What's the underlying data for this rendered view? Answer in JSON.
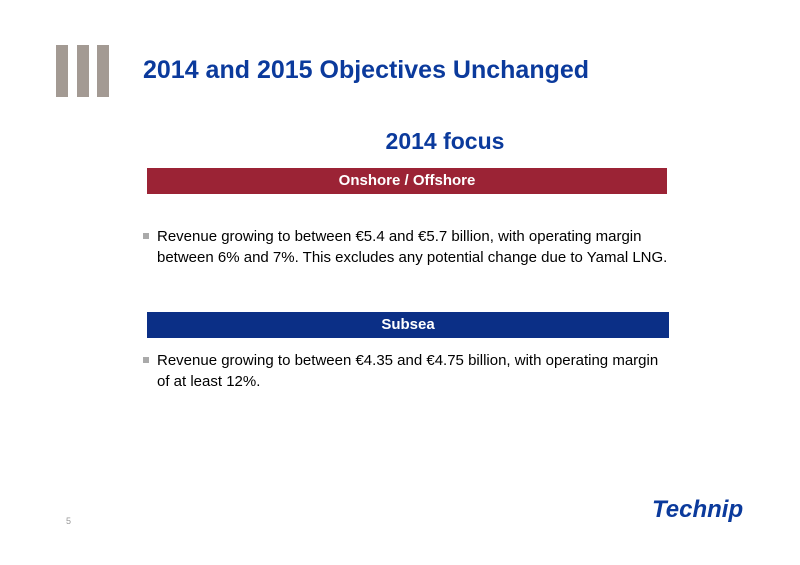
{
  "header": {
    "title": "2014 and 2015 Objectives Unchanged"
  },
  "subtitle": "2014 focus",
  "sections": [
    {
      "heading": "Onshore / Offshore",
      "bullets": [
        "Revenue growing to between €5.4 and €5.7 billion, with operating margin between 6% and 7%. This excludes any potential change due to Yamal LNG."
      ]
    },
    {
      "heading": "Subsea",
      "bullets": [
        "Revenue growing to between €4.35 and €4.75 billion, with operating margin of at least 12%."
      ]
    }
  ],
  "footer": {
    "page_number": "5",
    "logo": "Technip"
  }
}
